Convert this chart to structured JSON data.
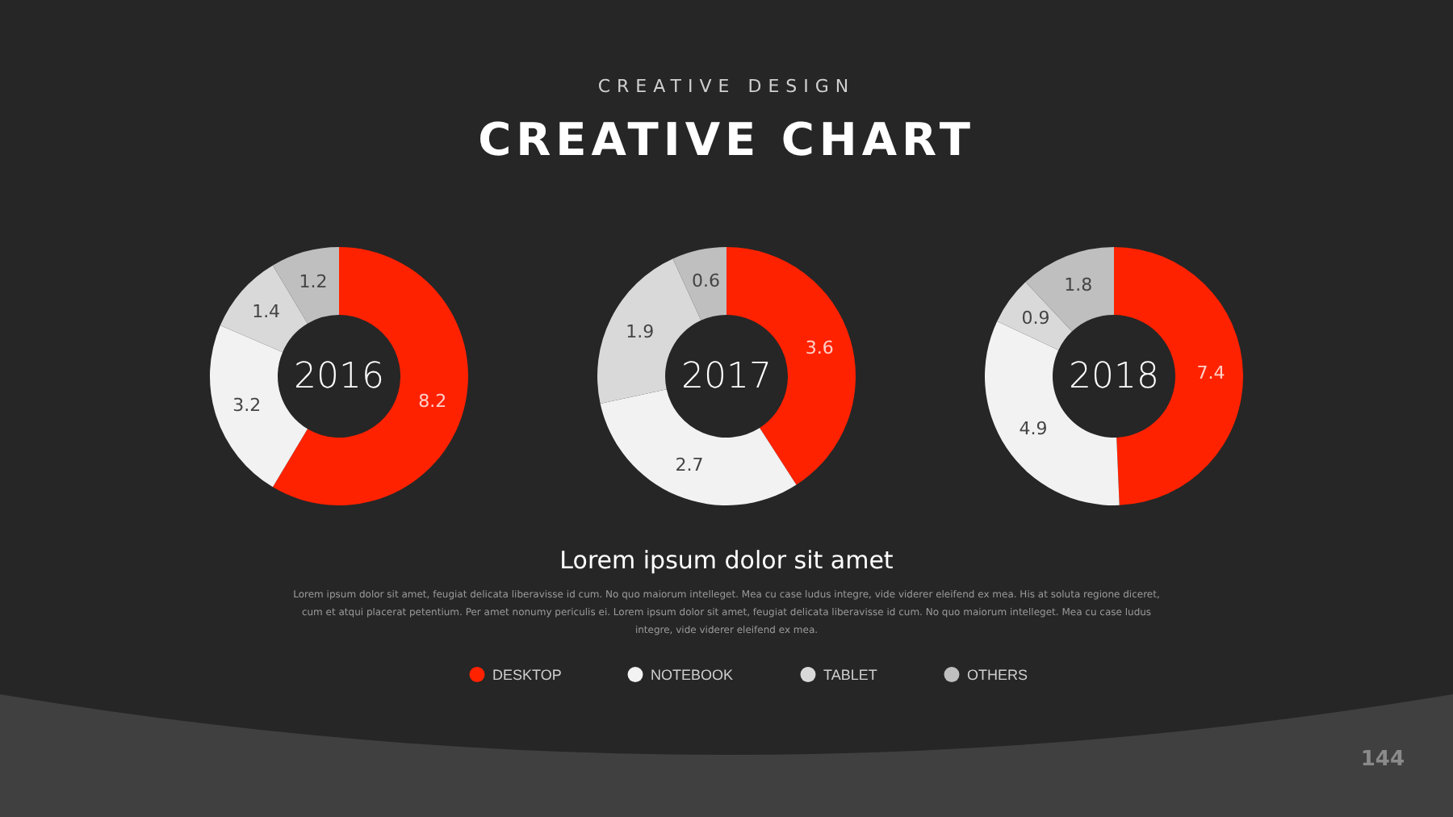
{
  "chart_data": [
    {
      "type": "other",
      "title": "CREATIVE CHART",
      "subtitle": "CREATIVE DESIGN"
    },
    {
      "type": "donut",
      "title": "2016",
      "categories": [
        null,
        null,
        null,
        null
      ],
      "values": [
        8.2,
        3.2,
        1.4,
        1.2
      ],
      "colors": [
        "#ff2200",
        "#f2f2f2",
        "#d9d9d9",
        "#bfbfbf"
      ],
      "data_labels": true
    },
    {
      "type": "donut",
      "title": "2017",
      "categories": [
        "DESKTOP",
        "NOTEBOOK",
        "TABLET",
        "OTHERS"
      ],
      "values": [
        3.6,
        2.7,
        1.9,
        0.6
      ],
      "colors": [
        "#ff2200",
        "#f2f2f2",
        "#d9d9d9",
        "#bfbfbf"
      ],
      "data_labels": true,
      "legend": "bottom"
    },
    {
      "type": "donut",
      "title": "2018",
      "categories": [
        null,
        null,
        null,
        null
      ],
      "values": [
        7.4,
        4.9,
        0.9,
        1.8
      ],
      "colors": [
        "#ff2200",
        "#f2f2f2",
        "#d9d9d9",
        "#bfbfbf"
      ],
      "data_labels": true
    },
    {
      "type": "other",
      "title": "Lorem ipsum dolor sit amet",
      "annotations": [
        "Lorem ipsum dolor sit amet, feugiat delicata liberavisse id cum. No quo maiorum intelleget. Mea cu case ludus integre, vide viderer eleifend ex mea. His at soluta regione diceret, cum et atqui placerat petentium. Per amet nonumy periculis ei. Lorem ipsum dolor sit amet, feugiat delicata liberavisse id cum. No quo maiorum intelleget. Mea cu case ludus integre, vide viderer eleifend ex mea.",
        "144"
      ]
    }
  ]
}
